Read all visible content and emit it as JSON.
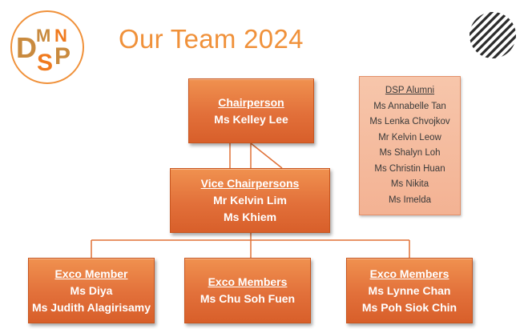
{
  "title": "Our Team 2024",
  "logo": {
    "letters": "DMSNP",
    "colors": {
      "ring": "#f0913a",
      "dark": "#c98a3e",
      "orange": "#f07a1e"
    }
  },
  "colors": {
    "accent": "#f0913a",
    "box": "#e2703a",
    "alumni_bg": "#f5bc9f",
    "connector": "#e07036"
  },
  "chairperson": {
    "role": "Chairperson",
    "names": [
      "Ms Kelley Lee"
    ]
  },
  "vice": {
    "role": "Vice Chairpersons",
    "names": [
      "Mr Kelvin Lim",
      "Ms Khiem"
    ]
  },
  "exco": [
    {
      "role": "Exco Member",
      "names": [
        "Ms Diya",
        "Ms Judith Alagirisamy"
      ]
    },
    {
      "role": "Exco Members",
      "names": [
        "Ms Chu Soh Fuen"
      ]
    },
    {
      "role": "Exco Members",
      "names": [
        "Ms Lynne Chan",
        "Ms Poh Siok Chin"
      ]
    }
  ],
  "alumni": {
    "title": "DSP Alumni",
    "members": [
      "Ms Annabelle Tan",
      "Ms Lenka Chvojkov",
      "Mr Kelvin Leow",
      "Ms Shalyn Loh",
      "Ms Christin Huan",
      "Ms Nikita",
      "Ms Imelda"
    ]
  },
  "decorations": {
    "stripes_icon": "diagonal-stripes-circle-icon"
  }
}
